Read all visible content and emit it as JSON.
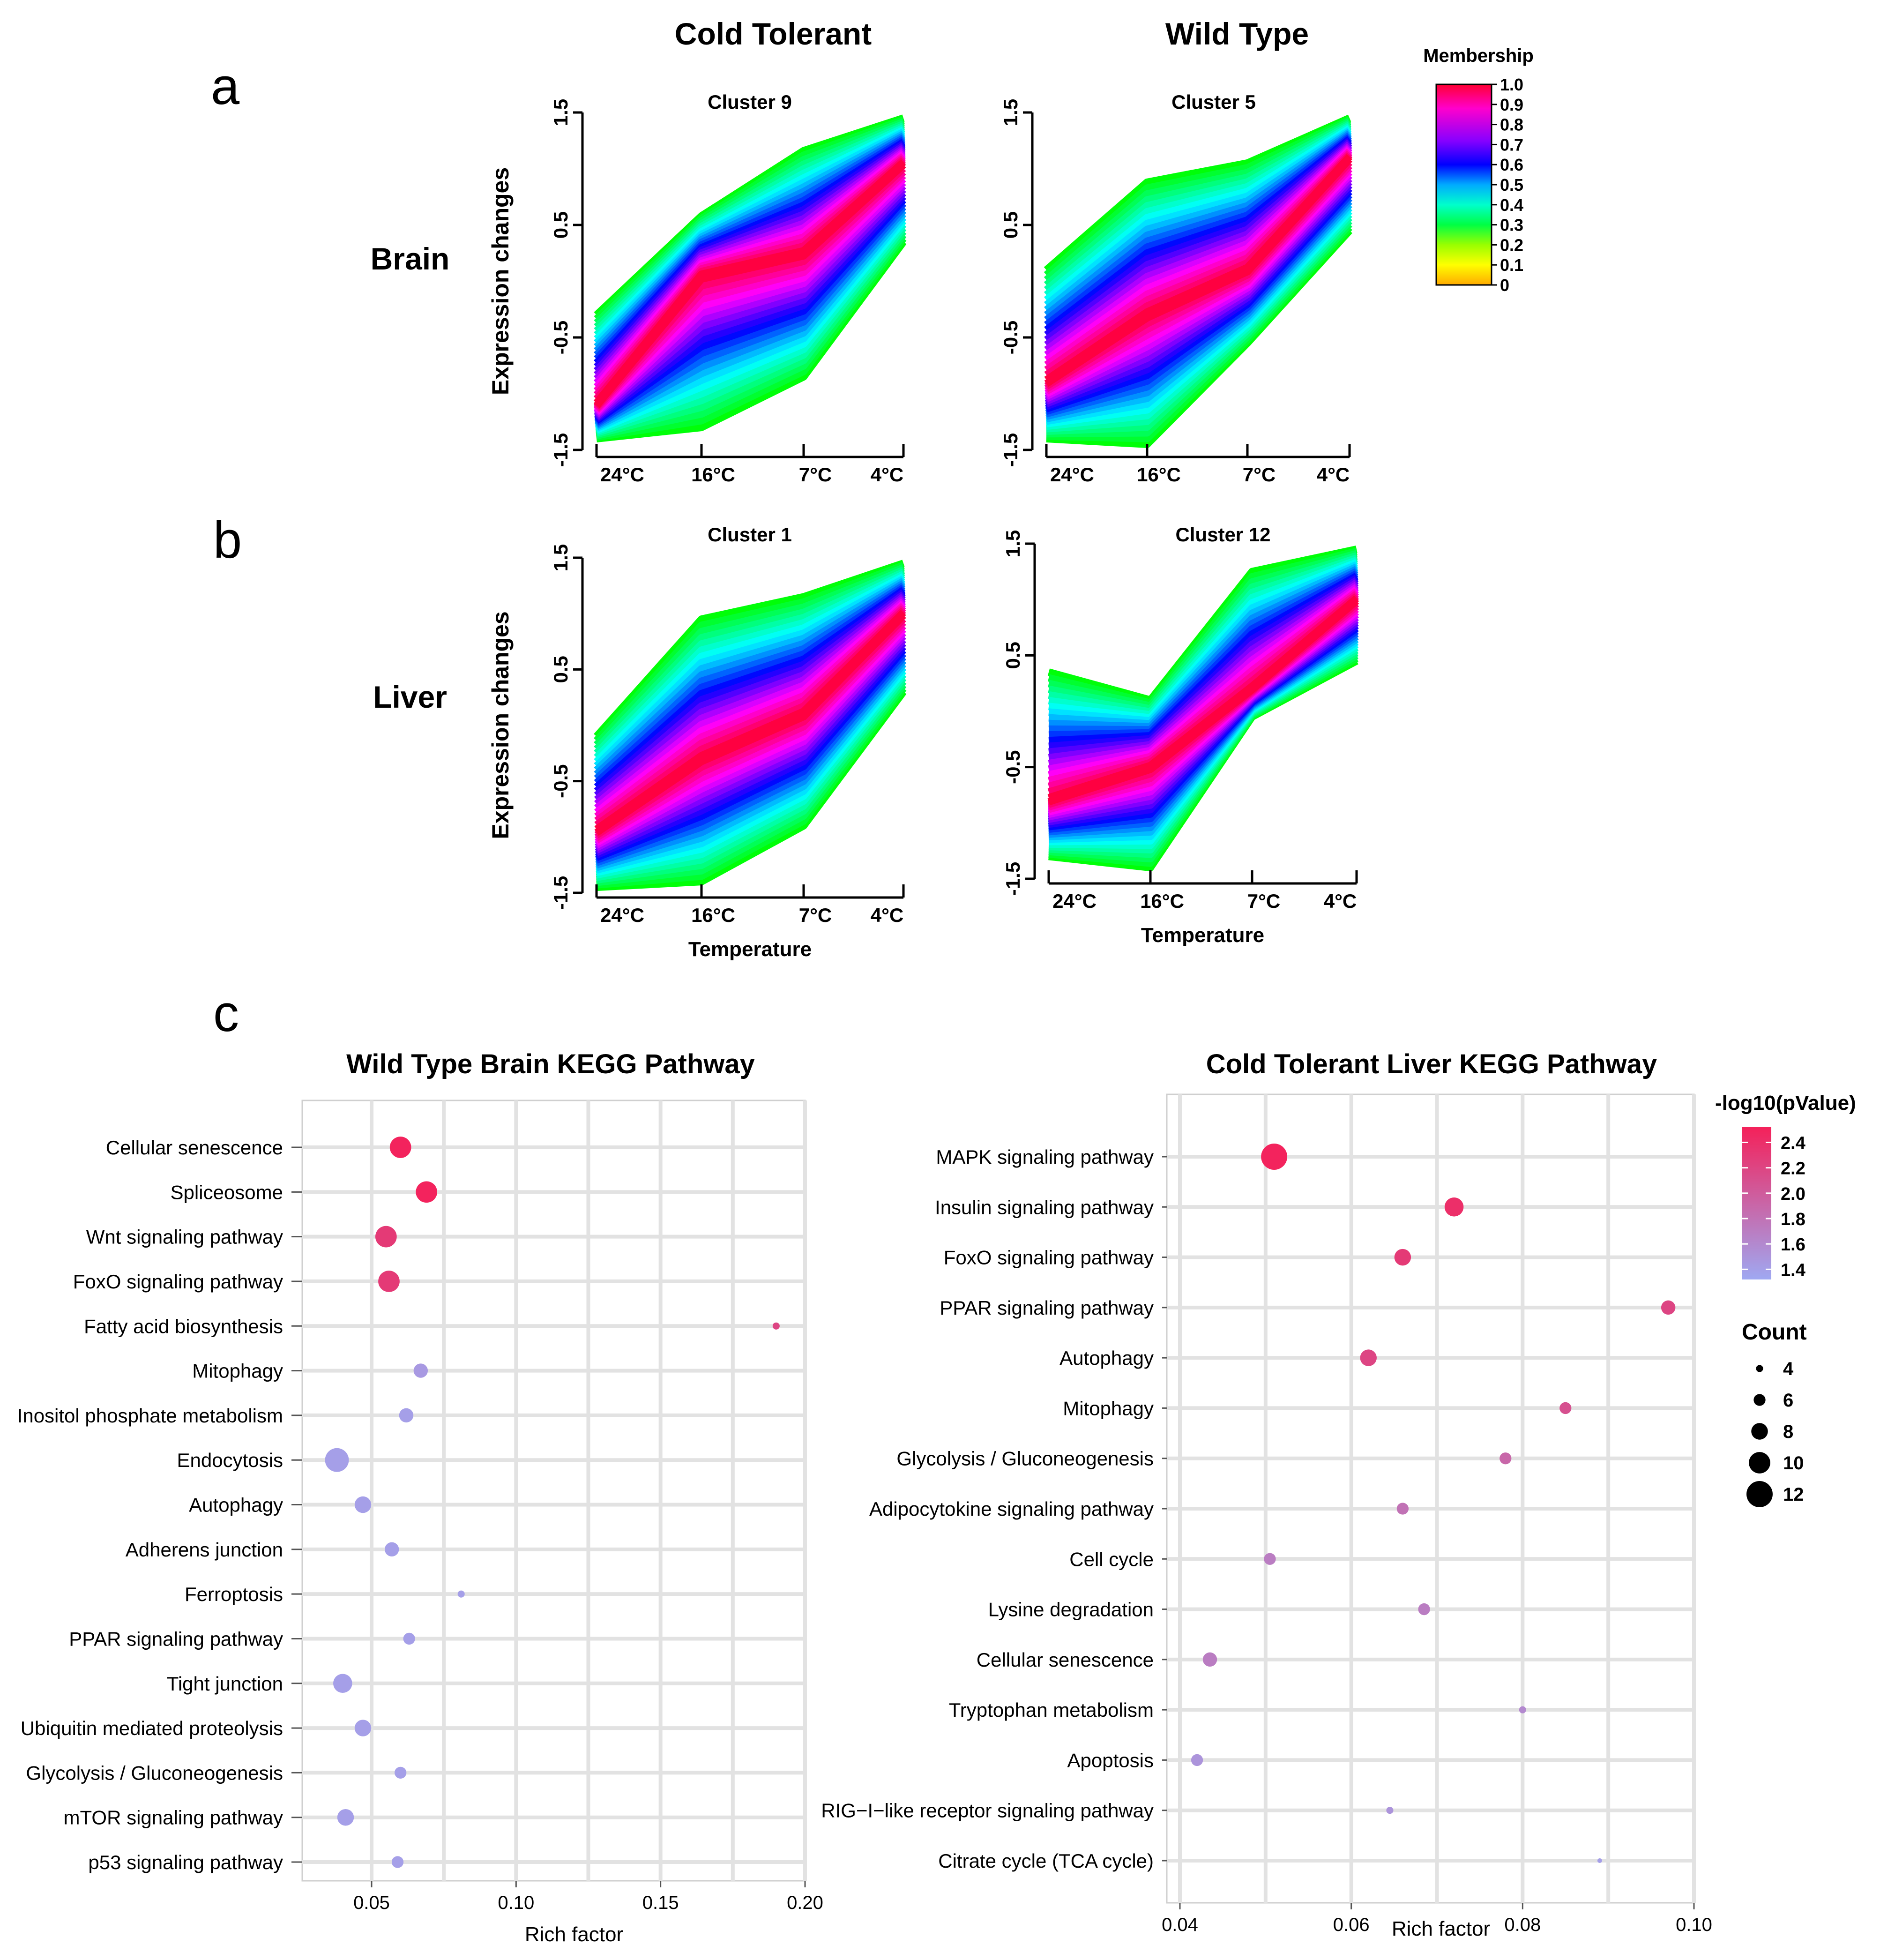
{
  "panel_letters": [
    "a",
    "b",
    "c"
  ],
  "column_titles": {
    "left": "Cold Tolerant",
    "right": "Wild Type"
  },
  "row_labels": {
    "top": "Brain",
    "bottom": "Liver"
  },
  "membership_legend": {
    "title": "Membership",
    "ticks": [
      "1.0",
      "0.9",
      "0.8",
      "0.7",
      "0.6",
      "0.5",
      "0.4",
      "0.3",
      "0.2",
      "0.1",
      "0"
    ],
    "colors": [
      "#ff0033",
      "#ff00cc",
      "#8800ff",
      "#0000ff",
      "#00aaff",
      "#00ffcc",
      "#00ff44",
      "#99ff00",
      "#ffff00",
      "#ffaa00"
    ]
  },
  "pvalue_colors": {
    "low": "#9fa8f2",
    "high": "#f4215a"
  },
  "chart_data": [
    {
      "type": "line",
      "id": "ct-brain",
      "title": "Cluster 9",
      "ylabel": "Expression changes",
      "xlabel": "",
      "categories": [
        "24°C",
        "16°C",
        "7°C",
        "4°C"
      ],
      "ylim": [
        -1.5,
        1.5
      ],
      "yticks": [
        "-1.5",
        "-0.5",
        "0.5",
        "1.5"
      ],
      "series": [
        {
          "name": "upper envelope",
          "values": [
            -0.3,
            0.58,
            1.16,
            1.45
          ]
        },
        {
          "name": "core",
          "values": [
            -1.1,
            0.05,
            0.25,
            1.05
          ]
        },
        {
          "name": "lower envelope",
          "values": [
            -1.4,
            -1.3,
            -0.85,
            0.35
          ]
        }
      ]
    },
    {
      "type": "line",
      "id": "wt-brain",
      "title": "Cluster 5",
      "ylabel": "",
      "xlabel": "",
      "categories": [
        "24°C",
        "16°C",
        "7°C",
        "4°C"
      ],
      "ylim": [
        -1.5,
        1.5
      ],
      "yticks": [
        "-1.5",
        "-0.5",
        "0.5",
        "1.5"
      ],
      "series": [
        {
          "name": "upper envelope",
          "values": [
            0.1,
            0.88,
            1.05,
            1.45
          ]
        },
        {
          "name": "core",
          "values": [
            -0.9,
            -0.3,
            0.1,
            1.1
          ]
        },
        {
          "name": "lower envelope",
          "values": [
            -1.4,
            -1.45,
            -0.55,
            0.45
          ]
        }
      ]
    },
    {
      "type": "line",
      "id": "ct-liver",
      "title": "Cluster 1",
      "ylabel": "Expression changes",
      "xlabel": "Temperature",
      "categories": [
        "24°C",
        "16°C",
        "7°C",
        "4°C"
      ],
      "ylim": [
        -1.5,
        1.5
      ],
      "yticks": [
        "-1.5",
        "-0.5",
        "0.5",
        "1.5"
      ],
      "series": [
        {
          "name": "upper envelope",
          "values": [
            -0.1,
            0.95,
            1.15,
            1.45
          ]
        },
        {
          "name": "core",
          "values": [
            -0.95,
            -0.3,
            0.1,
            1.0
          ]
        },
        {
          "name": "lower envelope",
          "values": [
            -1.45,
            -1.4,
            -0.9,
            0.3
          ]
        }
      ]
    },
    {
      "type": "line",
      "id": "wt-liver",
      "title": "Cluster 12",
      "ylabel": "",
      "xlabel": "Temperature",
      "categories": [
        "24°C",
        "16°C",
        "7°C",
        "4°C"
      ],
      "ylim": [
        -1.5,
        1.5
      ],
      "yticks": [
        "-1.5",
        "-0.5",
        "0.5",
        "1.5"
      ],
      "series": [
        {
          "name": "upper envelope",
          "values": [
            0.35,
            0.1,
            1.25,
            1.45
          ]
        },
        {
          "name": "core",
          "values": [
            -0.8,
            -0.5,
            0.2,
            1.0
          ]
        },
        {
          "name": "lower envelope",
          "values": [
            -1.3,
            -1.4,
            -0.05,
            0.45
          ]
        }
      ]
    },
    {
      "type": "scatter",
      "id": "wt-brain-kegg",
      "title": "Wild Type Brain KEGG Pathway",
      "xlabel": "Rich factor",
      "ylabel": "",
      "xlim": [
        0.03,
        0.2
      ],
      "xticks": [
        0.05,
        0.1,
        0.15,
        0.2
      ],
      "xtick_labels": [
        "0.05",
        "0.10",
        "0.15",
        "0.20"
      ],
      "grid": true,
      "categories": [
        "Cellular senescence",
        "Spliceosome",
        "Wnt signaling pathway",
        "FoxO signaling pathway",
        "Fatty acid biosynthesis",
        "Mitophagy",
        "Inositol phosphate metabolism",
        "Endocytosis",
        "Autophagy",
        "Adherens junction",
        "Ferroptosis",
        "PPAR signaling pathway",
        "Tight junction",
        "Ubiquitin mediated proteolysis",
        "Glycolysis / Gluconeogenesis",
        "mTOR signaling pathway",
        "p53 signaling pathway"
      ],
      "x": [
        0.06,
        0.069,
        0.055,
        0.056,
        0.19,
        0.067,
        0.062,
        0.038,
        0.047,
        0.057,
        0.081,
        0.063,
        0.04,
        0.047,
        0.06,
        0.041,
        0.059
      ],
      "count": [
        10,
        10,
        10,
        10,
        4,
        7,
        7,
        11,
        8,
        7,
        4,
        6,
        9,
        8,
        6,
        8,
        6
      ],
      "neg_log10_p": [
        2.5,
        2.5,
        2.3,
        2.3,
        2.2,
        1.45,
        1.4,
        1.4,
        1.4,
        1.4,
        1.4,
        1.4,
        1.4,
        1.4,
        1.4,
        1.4,
        1.4
      ]
    },
    {
      "type": "scatter",
      "id": "ct-liver-kegg",
      "title": "Cold Tolerant Liver KEGG Pathway",
      "xlabel": "Rich factor",
      "ylabel": "",
      "xlim": [
        0.04,
        0.1
      ],
      "xticks": [
        0.04,
        0.06,
        0.08,
        0.1
      ],
      "xtick_labels": [
        "0.04",
        "0.06",
        "0.08",
        "0.10"
      ],
      "grid": true,
      "categories": [
        "MAPK signaling pathway",
        "Insulin signaling pathway",
        "FoxO signaling pathway",
        "PPAR signaling pathway",
        "Autophagy",
        "Mitophagy",
        "Glycolysis / Gluconeogenesis",
        "Adipocytokine signaling pathway",
        "Cell cycle",
        "Lysine degradation",
        "Cellular senescence",
        "Tryptophan metabolism",
        "Apoptosis",
        "RIG−I−like receptor signaling pathway",
        "Citrate cycle (TCA cycle)"
      ],
      "x": [
        0.051,
        0.072,
        0.066,
        0.097,
        0.062,
        0.085,
        0.078,
        0.066,
        0.0505,
        0.0685,
        0.0435,
        0.08,
        0.042,
        0.0645,
        0.089
      ],
      "count": [
        12,
        9,
        8,
        7,
        8,
        6,
        6,
        6,
        6,
        6,
        7,
        4,
        6,
        4,
        3
      ],
      "neg_log10_p": [
        2.5,
        2.4,
        2.3,
        2.2,
        2.2,
        2.1,
        1.9,
        1.8,
        1.7,
        1.7,
        1.7,
        1.6,
        1.5,
        1.5,
        1.4
      ]
    }
  ],
  "pvalue_legend": {
    "title": "-log10(pValue)",
    "ticks": [
      "2.4",
      "2.2",
      "2.0",
      "1.8",
      "1.6",
      "1.4"
    ],
    "values": [
      2.4,
      2.2,
      2.0,
      1.8,
      1.6,
      1.4
    ],
    "range": [
      1.32,
      2.52
    ]
  },
  "count_legend": {
    "title": "Count",
    "entries": [
      "4",
      "6",
      "8",
      "10",
      "12"
    ],
    "values": [
      4,
      6,
      8,
      10,
      12
    ]
  }
}
